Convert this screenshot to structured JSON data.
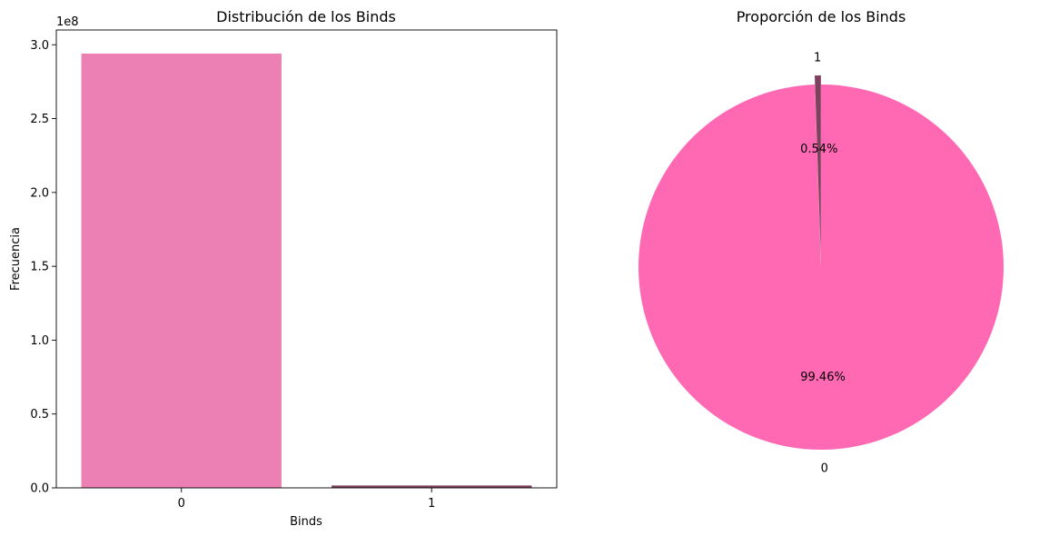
{
  "chart_data": [
    {
      "type": "bar",
      "title": "Distribución de los Binds",
      "xlabel": "Binds",
      "ylabel": "Frecuencia",
      "scale_label": "1e8",
      "categories": [
        "0",
        "1"
      ],
      "values": [
        294000000,
        1600000
      ],
      "ylim": [
        0,
        310000000
      ],
      "yticks": [
        0,
        50000000,
        100000000,
        150000000,
        200000000,
        250000000,
        300000000
      ],
      "ytick_labels": [
        "0.0",
        "0.5",
        "1.0",
        "1.5",
        "2.0",
        "2.5",
        "3.0"
      ],
      "colors": [
        "#ec7fb4",
        "#80405e"
      ],
      "grid": false
    },
    {
      "type": "pie",
      "title": "Proporción de los Binds",
      "labels": [
        "0",
        "1"
      ],
      "values": [
        99.46,
        0.54
      ],
      "autopct_labels": [
        "99.46%",
        "0.54%"
      ],
      "colors": [
        "#ff69b4",
        "#80405e"
      ],
      "explode": [
        0,
        0.05
      ]
    }
  ]
}
